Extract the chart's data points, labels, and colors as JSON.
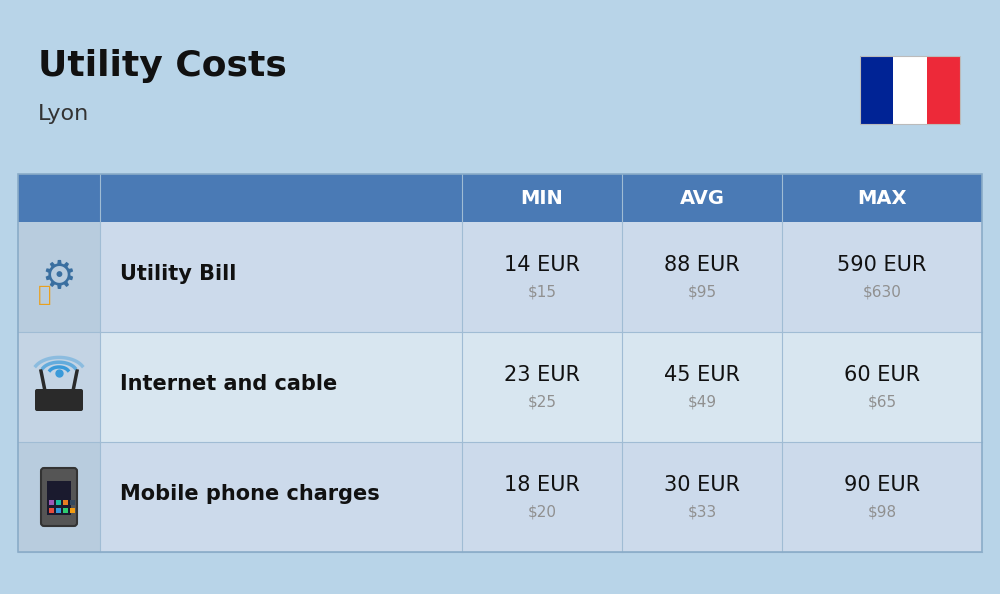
{
  "title": "Utility Costs",
  "subtitle": "Lyon",
  "background_color": "#b8d4e8",
  "header_bg_color": "#4a7ab5",
  "header_text_color": "#ffffff",
  "row_bg_colors_light": [
    "#ccdaeb",
    "#d8e6f0"
  ],
  "icon_col_bg_colors": [
    "#b8ccde",
    "#c4d4e4"
  ],
  "table_border_color": "#8aacc8",
  "divider_color": "#a0bcd4",
  "flag_colors": [
    "#002395",
    "#ffffff",
    "#ED2939"
  ],
  "headers": [
    "MIN",
    "AVG",
    "MAX"
  ],
  "rows": [
    {
      "label": "Utility Bill",
      "min_eur": "14 EUR",
      "min_usd": "$15",
      "avg_eur": "88 EUR",
      "avg_usd": "$95",
      "max_eur": "590 EUR",
      "max_usd": "$630",
      "icon": "utility"
    },
    {
      "label": "Internet and cable",
      "min_eur": "23 EUR",
      "min_usd": "$25",
      "avg_eur": "45 EUR",
      "avg_usd": "$49",
      "max_eur": "60 EUR",
      "max_usd": "$65",
      "icon": "internet"
    },
    {
      "label": "Mobile phone charges",
      "min_eur": "18 EUR",
      "min_usd": "$20",
      "avg_eur": "30 EUR",
      "avg_usd": "$33",
      "max_eur": "90 EUR",
      "max_usd": "$98",
      "icon": "mobile"
    }
  ],
  "title_fontsize": 26,
  "subtitle_fontsize": 16,
  "header_fontsize": 14,
  "cell_eur_fontsize": 15,
  "cell_usd_fontsize": 11,
  "label_fontsize": 15,
  "usd_color": "#909090",
  "label_color": "#111111",
  "eur_color": "#111111"
}
